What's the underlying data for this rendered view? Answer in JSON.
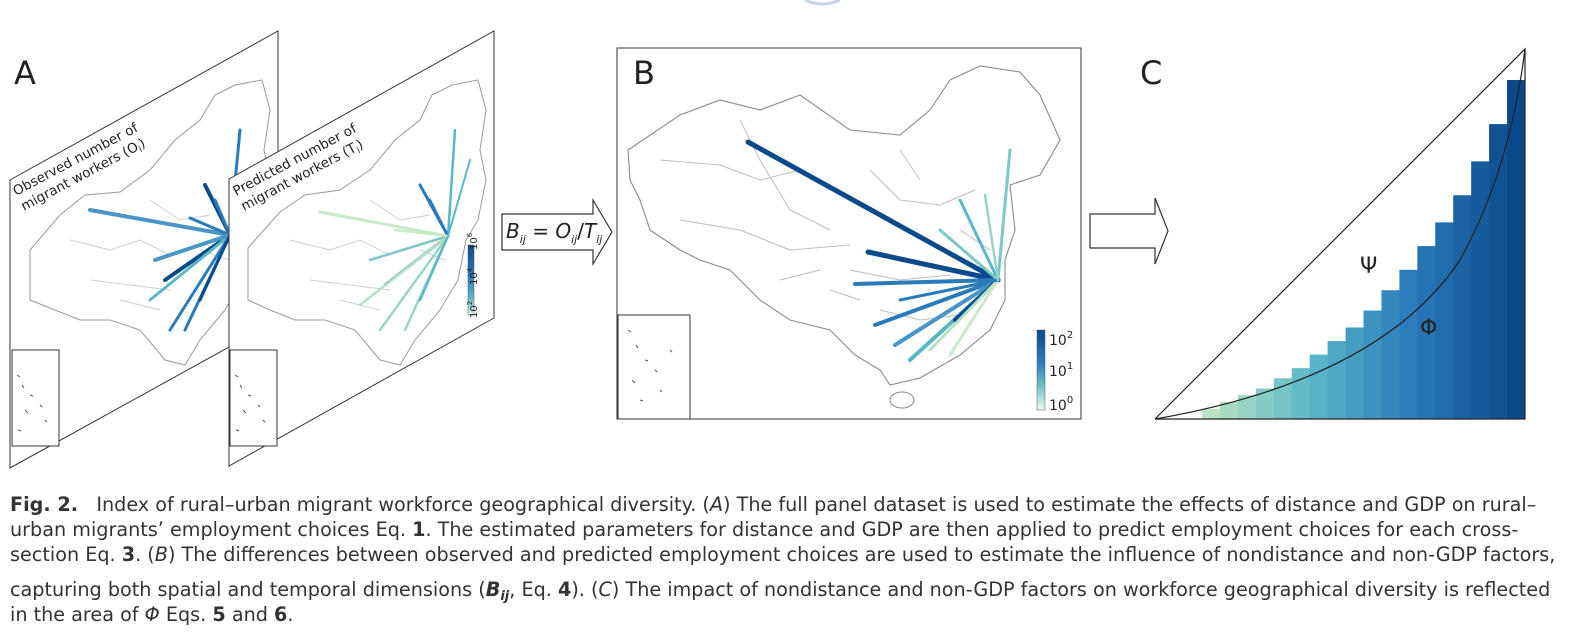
{
  "panel_a": {
    "label": "A",
    "observed_title_line1": "Observed number of",
    "observed_title_line2": "migrant workers (O",
    "observed_title_sub": "i",
    "predicted_title_line1": "Predicted number of",
    "predicted_title_line2": "migrant workers (T",
    "predicted_title_sub": "i",
    "colorbar_ticks": [
      {
        "base": "10",
        "exp": "6"
      },
      {
        "base": "10",
        "exp": "4"
      },
      {
        "base": "10",
        "exp": "2"
      }
    ]
  },
  "arrow_formula": {
    "b": "B",
    "b_sub": "ij",
    "eq": " = ",
    "o": "O",
    "o_sub": "ij",
    "slash": "/",
    "t": "T",
    "t_sub": "ij"
  },
  "panel_b": {
    "label": "B",
    "colorbar_ticks": [
      {
        "base": "10",
        "exp": "2"
      },
      {
        "base": "10",
        "exp": "1"
      },
      {
        "base": "10",
        "exp": "0"
      }
    ]
  },
  "panel_c": {
    "label": "C",
    "psi": "Ψ",
    "phi": "Φ",
    "bar_levels": [
      0.03,
      0.05,
      0.07,
      0.09,
      0.12,
      0.15,
      0.19,
      0.23,
      0.27,
      0.32,
      0.38,
      0.44,
      0.51,
      0.58,
      0.66,
      0.76,
      0.87,
      1.0
    ]
  },
  "colors": {
    "dark_blue": "#0b4a8a",
    "mid_blue": "#2a7bbb",
    "teal": "#5ab7c8",
    "light_green": "#b9e3c2"
  },
  "caption": {
    "fig_label": "Fig. 2.",
    "l1_a": "Index of rural–urban migrant workforce geographical diversity. (",
    "l1_b": "A",
    "l1_c": ") The full panel dataset is used to estimate the effects of distance and GDP on rural–",
    "l2_a": "urban migrants’ employment choices Eq. ",
    "l2_b": "1",
    "l2_c": ". The estimated parameters for distance and GDP are then applied to predict employment choices for each cross-",
    "l3_a": "section Eq. ",
    "l3_b": "3",
    "l3_c": ". (",
    "l3_d": "B",
    "l3_e": ") The differences between observed and predicted employment choices are used to estimate the influence of nondistance and non-GDP factors,",
    "l4_a": "capturing both spatial and temporal dimensions (",
    "l4_b": "B",
    "l4_sub": "ij",
    "l4_c": ", Eq. ",
    "l4_d": "4",
    "l4_e": "). (",
    "l4_f": "C",
    "l4_g": ") The impact of nondistance and non-GDP factors on workforce geographical diversity is reflected",
    "l5_a": "in the area of ",
    "l5_b": "Φ",
    "l5_c": " Eqs. ",
    "l5_d": "5",
    "l5_e": " and ",
    "l5_f": "6",
    "l5_g": "."
  }
}
